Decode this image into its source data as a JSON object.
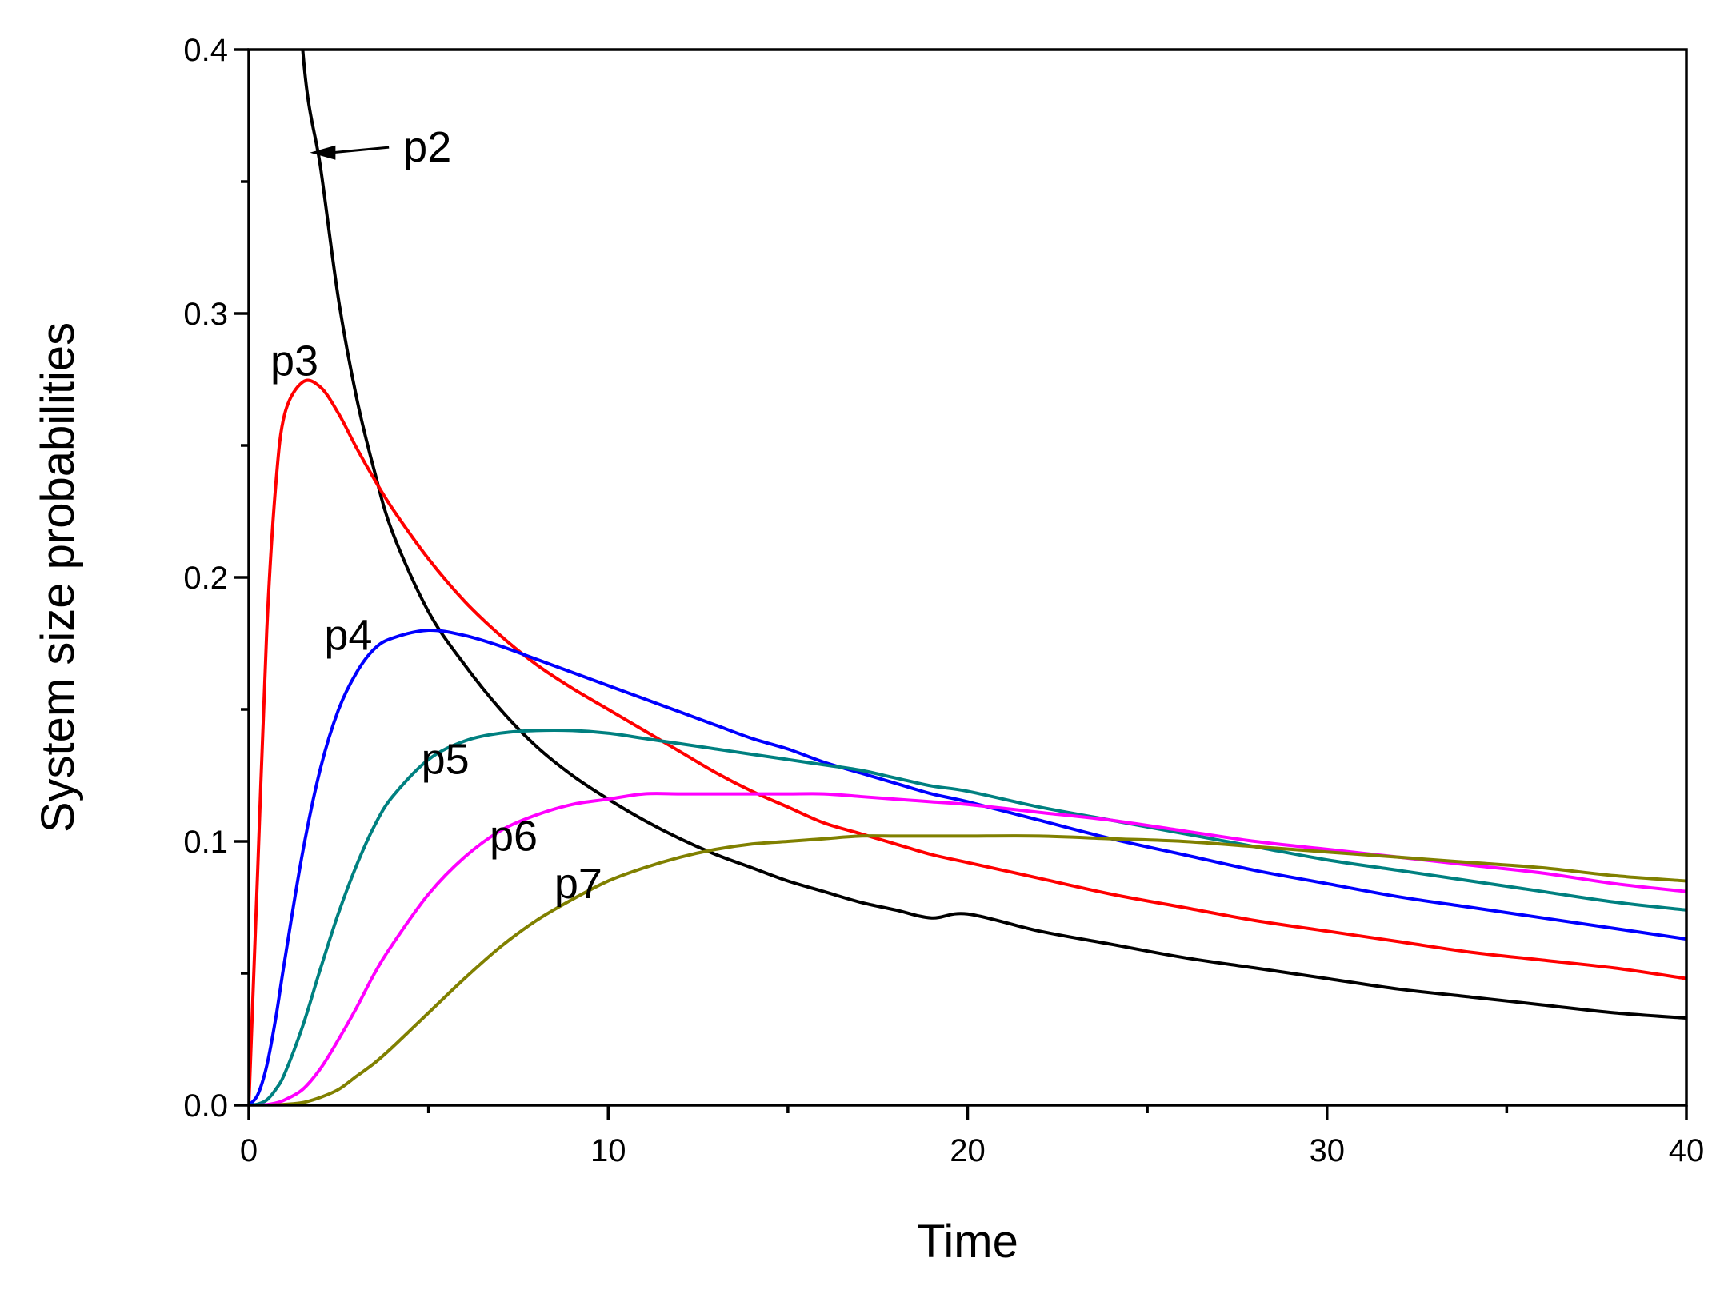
{
  "chart_data": {
    "type": "line",
    "title": "",
    "xlabel": "Time",
    "ylabel": "System size probabilities",
    "xlim": [
      0,
      40
    ],
    "ylim": [
      0,
      0.4
    ],
    "x_ticks": [
      0,
      10,
      20,
      30,
      40
    ],
    "x_tick_labels": [
      "0",
      "10",
      "20",
      "30",
      "40"
    ],
    "x_minor_ticks": [
      5,
      15,
      25,
      35
    ],
    "y_ticks": [
      0,
      0.1,
      0.2,
      0.3,
      0.4
    ],
    "y_tick_labels": [
      "0.0",
      "0.1",
      "0.2",
      "0.3",
      "0.4"
    ],
    "y_minor_ticks": [
      0.05,
      0.15,
      0.25,
      0.35
    ],
    "grid": false,
    "legend": "none",
    "x": [
      0,
      0.25,
      0.5,
      0.75,
      1,
      1.5,
      2,
      2.5,
      3,
      3.5,
      4,
      5,
      6,
      7,
      8,
      9,
      10,
      11,
      12,
      13,
      14,
      15,
      16,
      17,
      18,
      19,
      20,
      22,
      24,
      26,
      28,
      30,
      32,
      34,
      36,
      38,
      40
    ],
    "series": [
      {
        "name": "p2",
        "color": "#000000",
        "values": [
          null,
          null,
          null,
          null,
          null,
          0.4,
          0.355,
          0.305,
          0.268,
          0.24,
          0.217,
          0.187,
          0.167,
          0.15,
          0.136,
          0.125,
          0.116,
          0.108,
          0.101,
          0.095,
          0.09,
          0.085,
          0.081,
          0.077,
          0.074,
          0.071,
          0.0725,
          0.066,
          0.061,
          0.056,
          0.052,
          0.048,
          0.044,
          0.041,
          0.038,
          0.035,
          0.033
        ]
      },
      {
        "name": "p3",
        "color": "#ff0000",
        "values": [
          0,
          0.09,
          0.18,
          0.235,
          0.262,
          0.274,
          0.272,
          0.262,
          0.249,
          0.237,
          0.226,
          0.207,
          0.191,
          0.178,
          0.167,
          0.158,
          0.15,
          0.142,
          0.134,
          0.126,
          0.119,
          0.113,
          0.107,
          0.103,
          0.099,
          0.095,
          0.092,
          0.086,
          0.08,
          0.075,
          0.07,
          0.066,
          0.062,
          0.058,
          0.055,
          0.052,
          0.048
        ]
      },
      {
        "name": "p4",
        "color": "#0000ff",
        "values": [
          0,
          0.004,
          0.015,
          0.033,
          0.055,
          0.096,
          0.128,
          0.15,
          0.164,
          0.173,
          0.177,
          0.18,
          0.178,
          0.174,
          0.169,
          0.164,
          0.159,
          0.154,
          0.149,
          0.144,
          0.139,
          0.135,
          0.13,
          0.126,
          0.122,
          0.118,
          0.115,
          0.108,
          0.101,
          0.095,
          0.089,
          0.084,
          0.079,
          0.075,
          0.071,
          0.067,
          0.063
        ]
      },
      {
        "name": "p5",
        "color": "#008080",
        "values": [
          0,
          0.0004,
          0.002,
          0.006,
          0.012,
          0.03,
          0.052,
          0.073,
          0.091,
          0.106,
          0.117,
          0.131,
          0.138,
          0.141,
          0.142,
          0.142,
          0.141,
          0.139,
          0.137,
          0.135,
          0.133,
          0.131,
          0.129,
          0.127,
          0.124,
          0.121,
          0.119,
          0.113,
          0.108,
          0.103,
          0.098,
          0.093,
          0.089,
          0.085,
          0.081,
          0.077,
          0.074
        ]
      },
      {
        "name": "p6",
        "color": "#ff00ff",
        "values": [
          0,
          0,
          0.0002,
          0.0008,
          0.002,
          0.006,
          0.014,
          0.025,
          0.037,
          0.05,
          0.061,
          0.08,
          0.094,
          0.104,
          0.11,
          0.114,
          0.116,
          0.118,
          0.118,
          0.118,
          0.118,
          0.118,
          0.118,
          0.117,
          0.116,
          0.115,
          0.114,
          0.111,
          0.108,
          0.104,
          0.1,
          0.097,
          0.094,
          0.091,
          0.088,
          0.084,
          0.081
        ]
      },
      {
        "name": "p7",
        "color": "#808000",
        "values": [
          0,
          0,
          0,
          0.0001,
          0.0003,
          0.001,
          0.003,
          0.006,
          0.011,
          0.016,
          0.022,
          0.035,
          0.048,
          0.06,
          0.07,
          0.078,
          0.085,
          0.09,
          0.094,
          0.097,
          0.099,
          0.1,
          0.101,
          0.102,
          0.102,
          0.102,
          0.102,
          0.102,
          0.101,
          0.1,
          0.098,
          0.096,
          0.094,
          0.092,
          0.09,
          0.087,
          0.085
        ]
      }
    ],
    "annotations": [
      {
        "text": "p2",
        "x": 4.3,
        "y": 0.363,
        "arrow": true,
        "arrow_to_x": 1.7,
        "arrow_to_y": 0.361
      },
      {
        "text": "p3",
        "x": 0.6,
        "y": 0.282
      },
      {
        "text": "p4",
        "x": 2.1,
        "y": 0.178
      },
      {
        "text": "p5",
        "x": 4.8,
        "y": 0.131
      },
      {
        "text": "p6",
        "x": 6.7,
        "y": 0.102
      },
      {
        "text": "p7",
        "x": 8.5,
        "y": 0.084
      }
    ]
  }
}
